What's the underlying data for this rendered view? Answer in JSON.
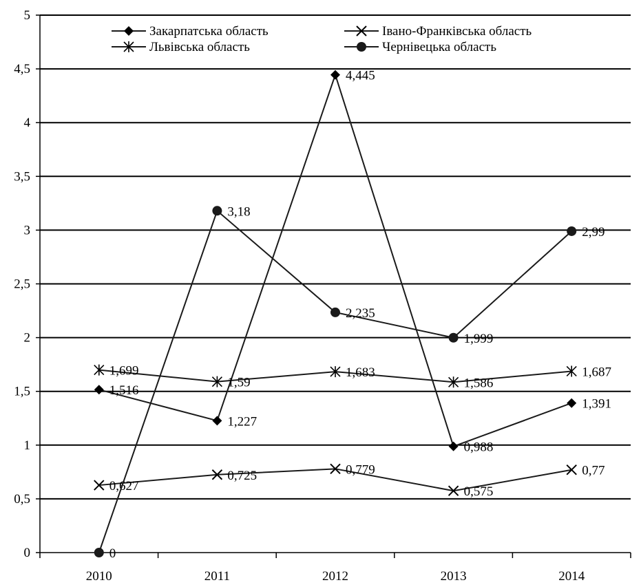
{
  "chart_data": {
    "type": "line",
    "title": "",
    "xlabel": "",
    "ylabel": "",
    "categories": [
      "2010",
      "2011",
      "2012",
      "2013",
      "2014"
    ],
    "ylim": [
      0,
      5
    ],
    "yticks": [
      0,
      0.5,
      1,
      1.5,
      2,
      2.5,
      3,
      3.5,
      4,
      4.5,
      5
    ],
    "ytick_labels": [
      "0",
      "0,5",
      "1",
      "1,5",
      "2",
      "2,5",
      "3",
      "3,5",
      "4",
      "4,5",
      "5"
    ],
    "grid": true,
    "legend_position": "top",
    "series": [
      {
        "name": "Закарпатська область",
        "marker": "diamond",
        "values": [
          1.516,
          1.227,
          4.445,
          0.988,
          1.391
        ],
        "labels": [
          "1,516",
          "1,227",
          "4,445",
          "0,988",
          "1,391"
        ]
      },
      {
        "name": "Івано-Франківська область",
        "marker": "x",
        "values": [
          0.627,
          0.725,
          0.779,
          0.575,
          0.77
        ],
        "labels": [
          "0,627",
          "0,725",
          "0,779",
          "0,575",
          "0,77"
        ]
      },
      {
        "name": "Львівська область",
        "marker": "star",
        "values": [
          1.699,
          1.59,
          1.683,
          1.586,
          1.687
        ],
        "labels": [
          "1,699",
          "1,59",
          "1,683",
          "1,586",
          "1,687"
        ]
      },
      {
        "name": "Чернівецька область",
        "marker": "circle",
        "values": [
          0,
          3.18,
          2.235,
          1.999,
          2.99
        ],
        "labels": [
          "0",
          "3,18",
          "2,235",
          "1,999",
          "2,99"
        ]
      }
    ],
    "colors": {
      "line": "#1a1a1a",
      "grid": "#000000",
      "background": "#ffffff"
    }
  }
}
